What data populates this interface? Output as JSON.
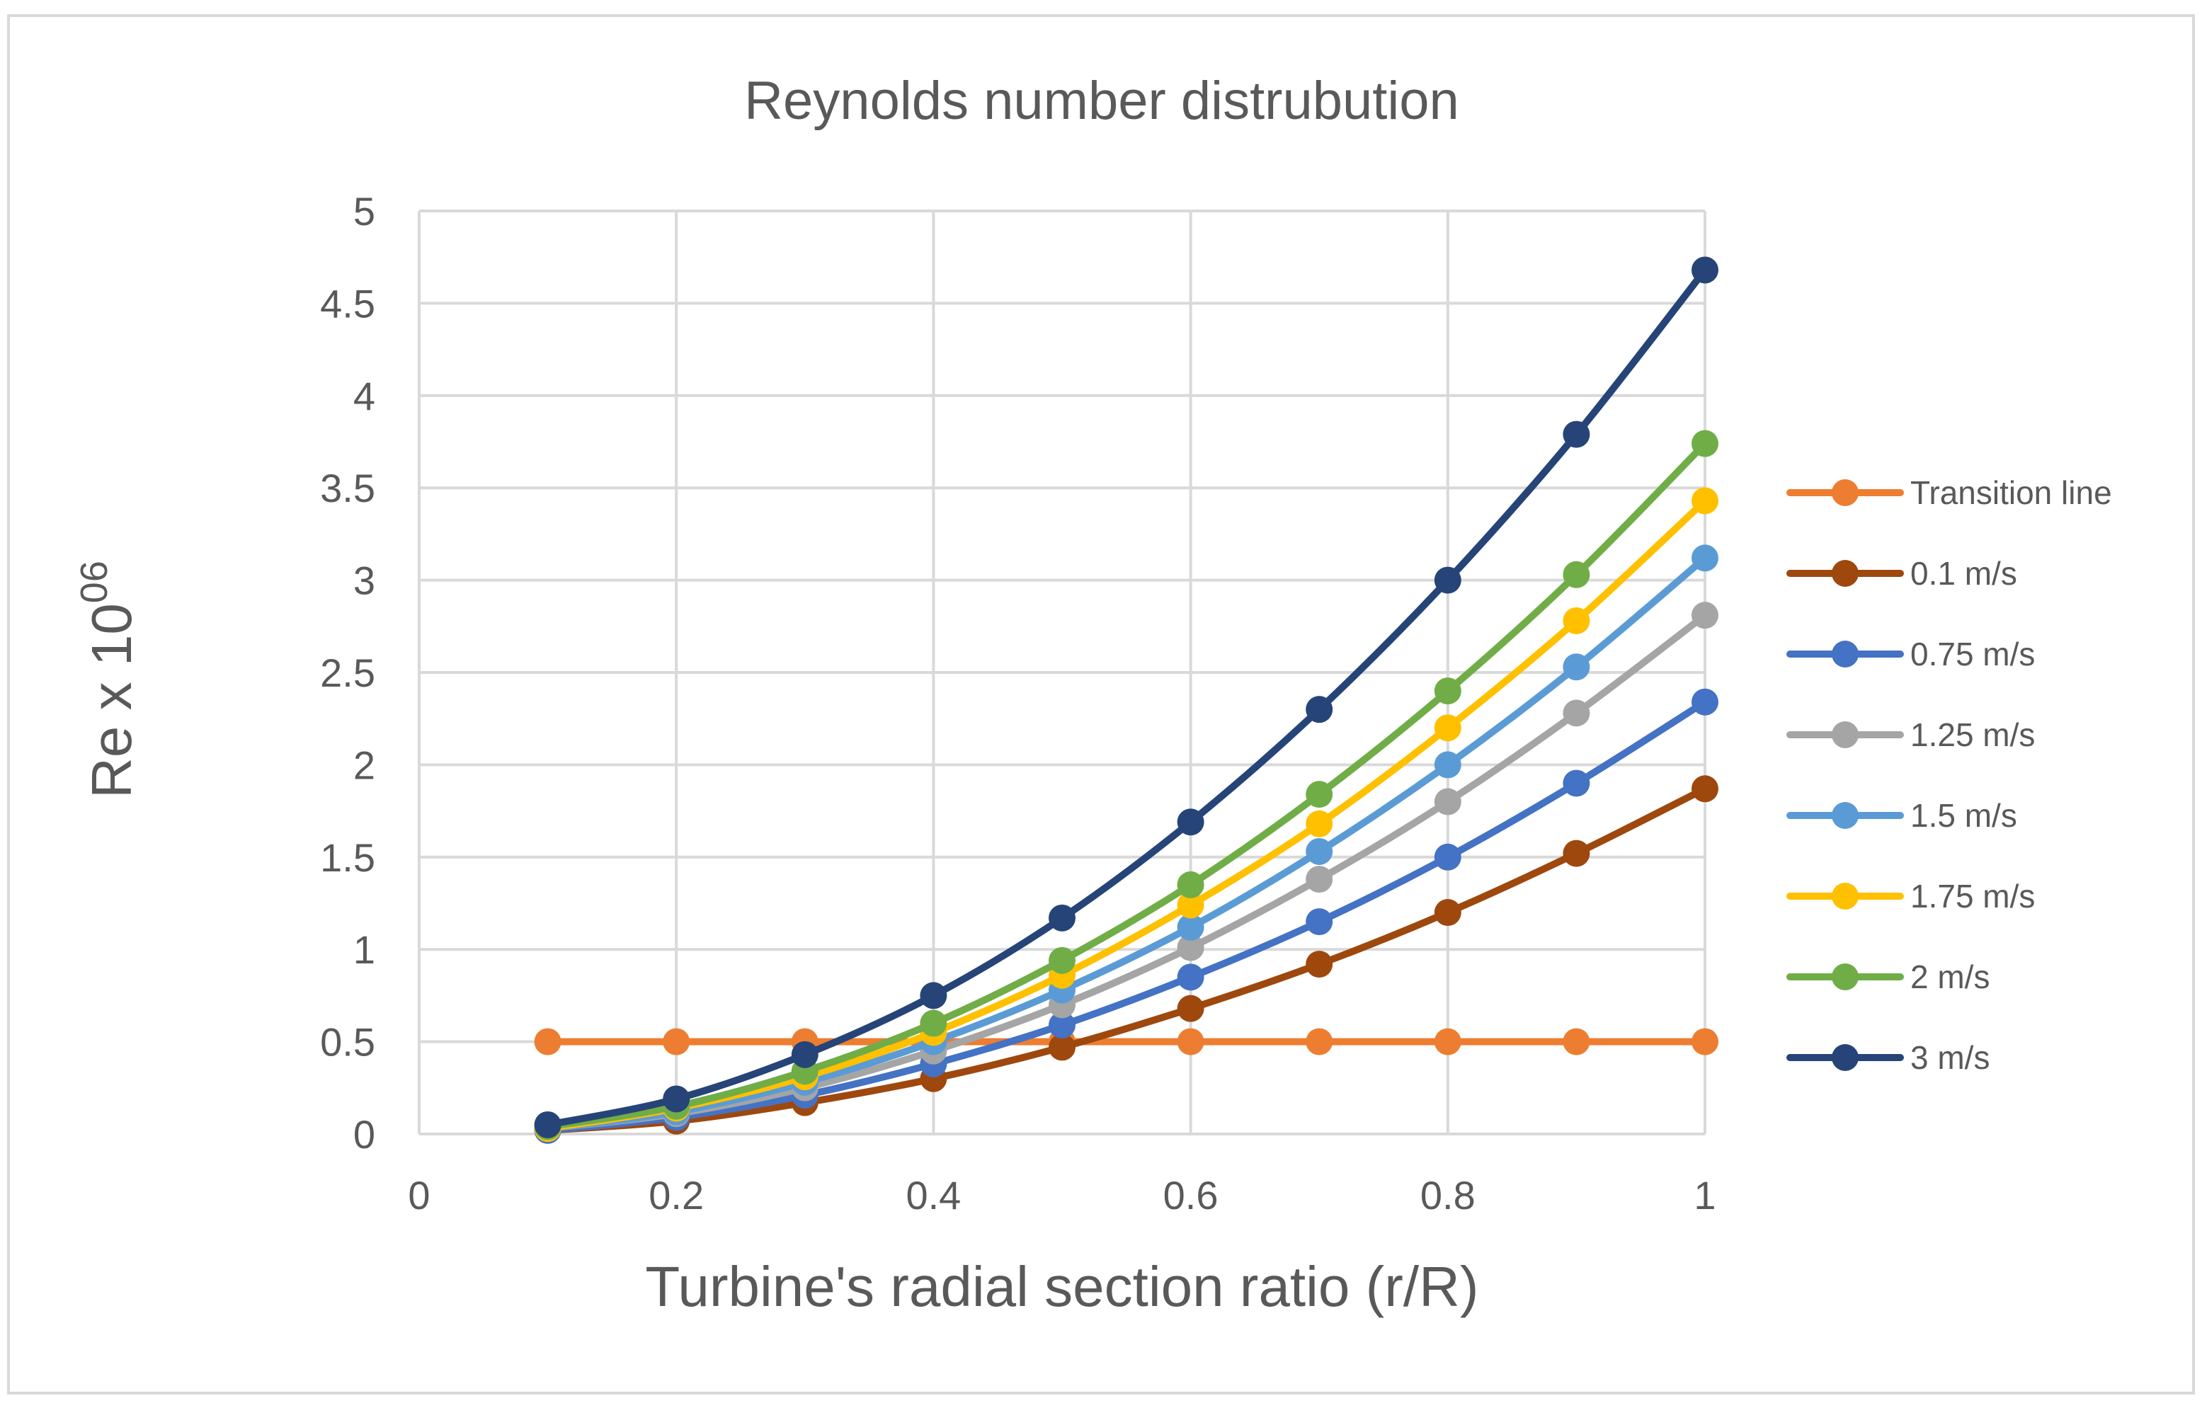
{
  "chart_data": {
    "type": "line",
    "title": "Reynolds number distrubution",
    "xlabel": "Turbine's radial section ratio (r/R)",
    "ylabel_main": "Re  x 10",
    "ylabel_superscript": "06",
    "xlim": [
      0,
      1
    ],
    "ylim": [
      0,
      5
    ],
    "x_ticks": [
      0,
      0.2,
      0.4,
      0.6,
      0.8,
      1
    ],
    "y_ticks": [
      0,
      0.5,
      1,
      1.5,
      2,
      2.5,
      3,
      3.5,
      4,
      4.5,
      5
    ],
    "grid": true,
    "legend_position": "right",
    "x": [
      0.1,
      0.2,
      0.3,
      0.4,
      0.5,
      0.6,
      0.7,
      0.8,
      0.9,
      1.0
    ],
    "series": [
      {
        "name": "Transition line",
        "color": "#ED7D31",
        "values": [
          0.5,
          0.5,
          0.5,
          0.5,
          0.5,
          0.5,
          0.5,
          0.5,
          0.5,
          0.5
        ]
      },
      {
        "name": "0.1 m/s",
        "color": "#9E480E",
        "values": [
          0.02,
          0.07,
          0.17,
          0.3,
          0.47,
          0.68,
          0.92,
          1.2,
          1.52,
          1.87
        ]
      },
      {
        "name": "0.75 m/s",
        "color": "#4472C4",
        "values": [
          0.02,
          0.09,
          0.21,
          0.38,
          0.59,
          0.85,
          1.15,
          1.5,
          1.9,
          2.34
        ]
      },
      {
        "name": "1.25 m/s",
        "color": "#A5A5A5",
        "values": [
          0.03,
          0.11,
          0.25,
          0.45,
          0.7,
          1.01,
          1.38,
          1.8,
          2.28,
          2.81
        ]
      },
      {
        "name": "1.5 m/s",
        "color": "#5B9BD5",
        "values": [
          0.03,
          0.12,
          0.28,
          0.5,
          0.78,
          1.12,
          1.53,
          2.0,
          2.53,
          3.12
        ]
      },
      {
        "name": "1.75 m/s",
        "color": "#FFC000",
        "values": [
          0.03,
          0.14,
          0.31,
          0.55,
          0.86,
          1.24,
          1.68,
          2.2,
          2.78,
          3.43
        ]
      },
      {
        "name": "2 m/s",
        "color": "#70AD47",
        "values": [
          0.04,
          0.15,
          0.34,
          0.6,
          0.94,
          1.35,
          1.84,
          2.4,
          3.03,
          3.74
        ]
      },
      {
        "name": "3 m/s",
        "color": "#264478",
        "values": [
          0.05,
          0.19,
          0.43,
          0.75,
          1.17,
          1.69,
          2.3,
          3.0,
          3.79,
          4.68
        ]
      }
    ]
  }
}
